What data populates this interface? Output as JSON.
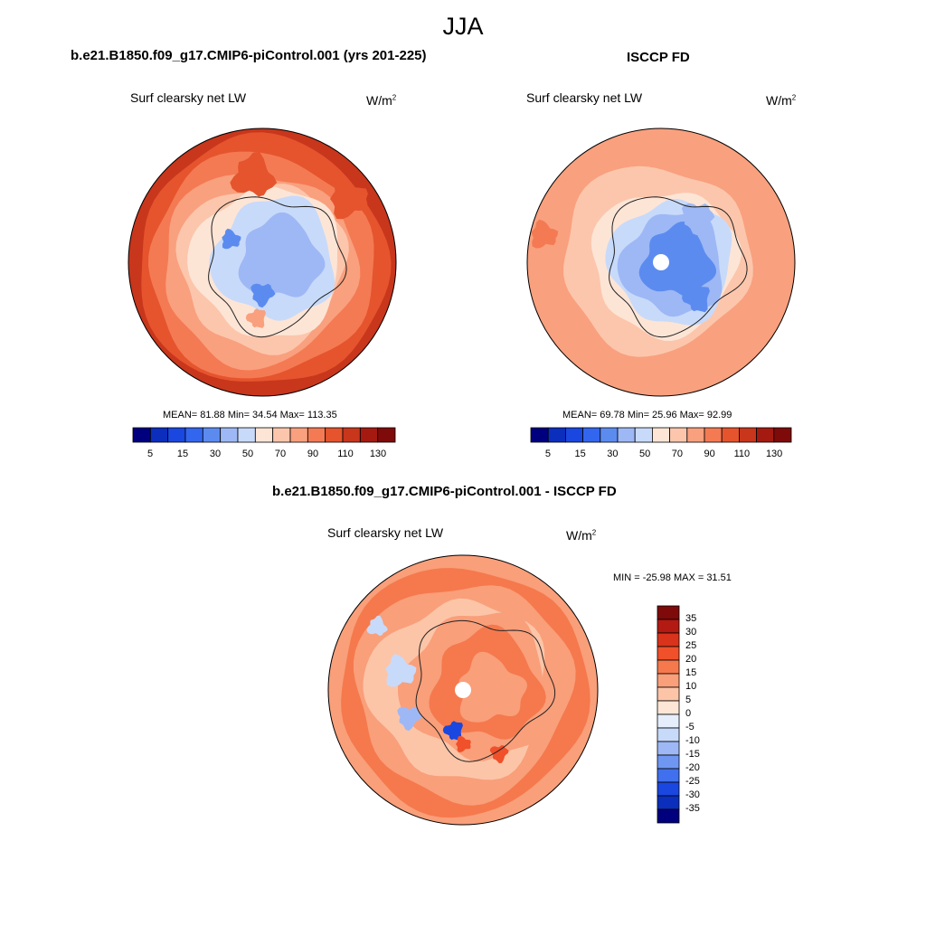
{
  "title": "JJA",
  "panels": [
    {
      "title": "b.e21.B1850.f09_g17.CMIP6-piControl.001 (yrs 201-225)",
      "variable": "Surf clearsky net LW",
      "units_base": "W/m",
      "units_sup": "2",
      "stats": "MEAN=  81.88  Min=  34.54  Max= 113.35",
      "colorbar_ticks": [
        "5",
        "15",
        "30",
        "50",
        "70",
        "90",
        "110",
        "130"
      ]
    },
    {
      "title": "ISCCP FD",
      "variable": "Surf clearsky net LW",
      "units_base": "W/m",
      "units_sup": "2",
      "stats": "MEAN=  69.78  Min=  25.96  Max=  92.99",
      "colorbar_ticks": [
        "5",
        "15",
        "30",
        "50",
        "70",
        "90",
        "110",
        "130"
      ]
    },
    {
      "title": "b.e21.B1850.f09_g17.CMIP6-piControl.001 - ISCCP FD",
      "variable": "Surf clearsky net LW",
      "units_base": "W/m",
      "units_sup": "2",
      "stats": "MIN = -25.98 MAX =  31.51",
      "colorbar_ticks": [
        "35",
        "30",
        "25",
        "20",
        "15",
        "10",
        "5",
        "0",
        "-5",
        "-10",
        "-15",
        "-20",
        "-25",
        "-30",
        "-35"
      ]
    }
  ],
  "colors": {
    "abs_scale": [
      "#00007f",
      "#0b2ebd",
      "#1a47df",
      "#3366ee",
      "#5c8bf0",
      "#9db8f5",
      "#c8dafa",
      "#fde5d6",
      "#fcc6ac",
      "#f9a07e",
      "#f47a53",
      "#e5542d",
      "#c8361c",
      "#a51a10",
      "#7f0a0a"
    ],
    "diff_scale": [
      "#7f0a0a",
      "#b31a12",
      "#d9331b",
      "#f0502a",
      "#f5794d",
      "#f99f7a",
      "#fcc5a8",
      "#fde6d6",
      "#e6eefc",
      "#c8dafa",
      "#9db8f5",
      "#6f97f2",
      "#4070ee",
      "#1a47df",
      "#0b2ebd",
      "#00007f"
    ]
  }
}
